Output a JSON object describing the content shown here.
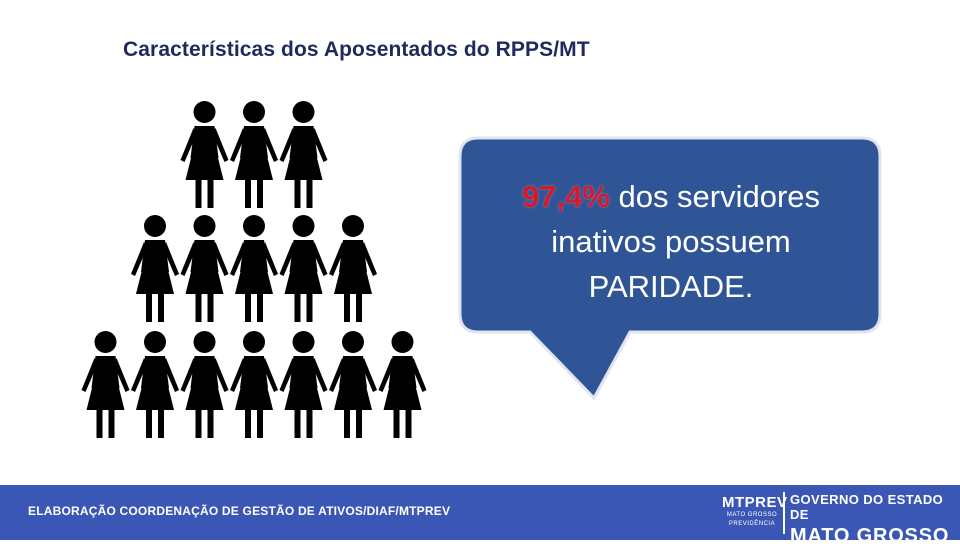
{
  "slide": {
    "title": "Características dos Aposentados do RPPS/MT",
    "callout": {
      "percent": "97,4%",
      "text_1": " dos servidores",
      "text_2": "inativos possuem",
      "text_3": "PARIDADE."
    },
    "figure_rows": [
      3,
      5,
      7
    ],
    "colors": {
      "figure": "#000000",
      "callout": "#2f5597",
      "percent": "#d6192b",
      "footer": "#3b57b6",
      "title": "#1f2a5c"
    }
  },
  "footer": {
    "credit": "ELABORAÇÃO COORDENAÇÃO DE GESTÃO DE ATIVOS/DIAF/MTPREV",
    "logo_mtprev": "MTPREV",
    "logo_mtprev_sub1": "MATO GROSSO",
    "logo_mtprev_sub2": "PREVIDÊNCIA",
    "logo_gov_line1": "GOVERNO DO ESTADO DE",
    "logo_gov_line2": "MATO GROSSO"
  }
}
